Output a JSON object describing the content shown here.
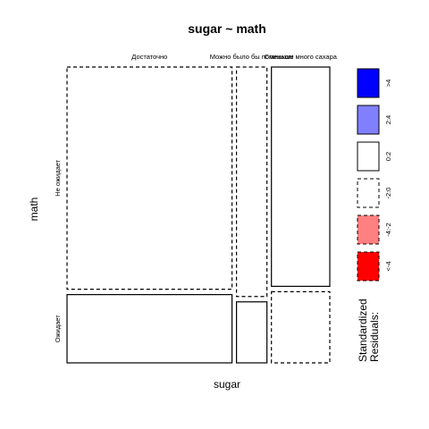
{
  "chart_data": {
    "type": "mosaic",
    "title": "sugar ~ math",
    "xlabel": "sugar",
    "ylabel": "math",
    "x_categories": [
      "Достаточно",
      "Можно было бы поменьше",
      "Слишком много сахара"
    ],
    "y_categories": [
      "Не ожидает",
      "Ожидает"
    ],
    "x_proportions": [
      0.65,
      0.12,
      0.23
    ],
    "y_proportions_by_x": [
      [
        0.765,
        0.235
      ],
      [
        0.79,
        0.21
      ],
      [
        0.755,
        0.245
      ]
    ],
    "residual_class_by_cell": [
      [
        "-2:0",
        "0:2"
      ],
      [
        "-2:0",
        "0:2"
      ],
      [
        "0:2",
        "-2:0"
      ]
    ],
    "legend": {
      "title_line1": "Standardized",
      "title_line2": "Residuals:",
      "items": [
        {
          "label": ">4",
          "fill": "#0000ff",
          "dashed": false
        },
        {
          "label": "2:4",
          "fill": "#8080ff",
          "dashed": false
        },
        {
          "label": "0:2",
          "fill": "#ffffff",
          "dashed": false
        },
        {
          "label": "-2:0",
          "fill": "#ffffff",
          "dashed": true
        },
        {
          "label": "-4:-2",
          "fill": "#ff8080",
          "dashed": true
        },
        {
          "label": "<-4",
          "fill": "#ff0000",
          "dashed": true
        }
      ]
    }
  }
}
